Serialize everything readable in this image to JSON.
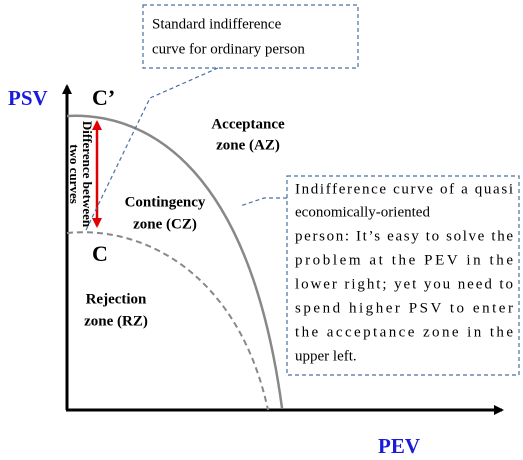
{
  "axes": {
    "y_label": "PSV",
    "x_label": "PEV"
  },
  "points": {
    "upper": "C’",
    "lower": "C"
  },
  "difference_label": [
    "Difference between",
    "two curves"
  ],
  "zones": {
    "acceptance": [
      "Acceptance",
      "zone (AZ)"
    ],
    "contingency": [
      "Contingency",
      "zone (CZ)"
    ],
    "rejection": [
      "Rejection",
      "zone (RZ)"
    ]
  },
  "callouts": [
    {
      "lines": [
        "Standard indifference",
        "curve for ordinary person"
      ]
    },
    {
      "lines": [
        "Indifference curve of a quasi",
        "economically-oriented",
        "person: It’s easy to solve the",
        "problem at the PEV in the",
        "lower right; yet you need to",
        "spend higher PSV to enter",
        "the acceptance zone in the",
        "upper left."
      ]
    }
  ]
}
